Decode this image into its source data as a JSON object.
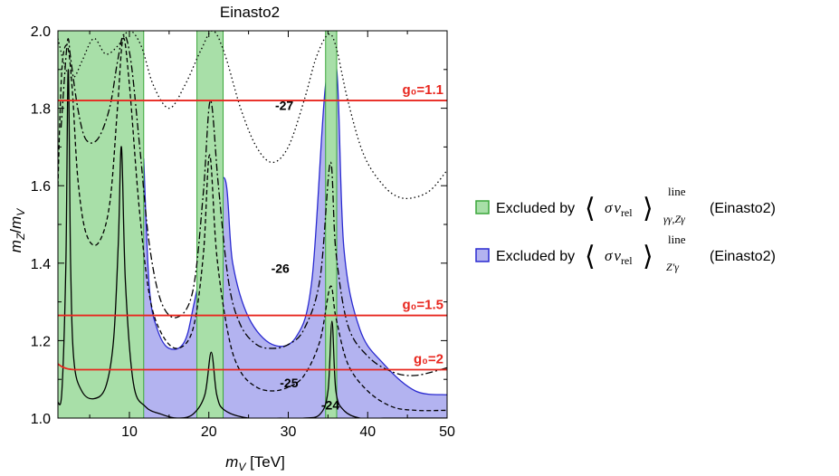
{
  "chart_data": {
    "type": "line",
    "title": "Einasto2",
    "xlabel_var": "m",
    "xlabel_sub": "V",
    "xlabel_unit": " [TeV]",
    "ylabel_var_num": "m",
    "ylabel_sub_num": "Z",
    "ylabel_var_den": "m",
    "ylabel_sub_den": "V",
    "xlim": [
      1,
      50
    ],
    "ylim": [
      1.0,
      2.0
    ],
    "x_ticks": [
      10,
      20,
      30,
      40,
      50
    ],
    "x_tick_labels": [
      "10",
      "20",
      "30",
      "40",
      "50"
    ],
    "y_ticks": [
      1.0,
      1.2,
      1.4,
      1.6,
      1.8,
      2.0
    ],
    "y_tick_labels": [
      "1.0",
      "1.2",
      "1.4",
      "1.6",
      "1.8",
      "2.0"
    ],
    "colors": {
      "green_fill": "#a8dfa8",
      "green_edge": "#3aa63a",
      "blue_fill": "#b3b3f0",
      "blue_edge": "#2a2ad0",
      "red": "#e8271f",
      "curve": "#000000"
    },
    "excluded_gamma_bands": [
      [
        1,
        11.8
      ],
      [
        18.5,
        21.8
      ],
      [
        34.7,
        36.1
      ]
    ],
    "blue_boundary": {
      "x": [
        11.8,
        12.5,
        13.5,
        15,
        17,
        18.5,
        21.8,
        23,
        25,
        28,
        31,
        33,
        34.7,
        36.1,
        37,
        39,
        42,
        46,
        50
      ],
      "y": [
        1.67,
        1.34,
        1.23,
        1.18,
        1.2,
        1.33,
        1.62,
        1.4,
        1.26,
        1.19,
        1.21,
        1.36,
        1.86,
        1.9,
        1.44,
        1.23,
        1.14,
        1.07,
        1.06
      ]
    },
    "g0_lines": [
      {
        "label": "g₀=1.1",
        "y": 1.82
      },
      {
        "label": "g₀=1.5",
        "y": 1.265
      },
      {
        "label": "g₀=2",
        "y": 1.125,
        "start_y": 1.14
      }
    ],
    "contours": [
      {
        "name": "-24",
        "style": "solid",
        "x": [
          1,
          1.5,
          2,
          2.3,
          2.6,
          3,
          4,
          5.5,
          7,
          8,
          8.6,
          9,
          9.5,
          10.5,
          12,
          14,
          16,
          18,
          19.5,
          20.3,
          21,
          22,
          25,
          29,
          32,
          34,
          35,
          35.5,
          36,
          37,
          39,
          42,
          45,
          48,
          50
        ],
        "y": [
          1.04,
          1.07,
          1.4,
          1.9,
          1.4,
          1.15,
          1.07,
          1.05,
          1.08,
          1.2,
          1.45,
          1.7,
          1.35,
          1.09,
          1.03,
          1.01,
          1.0,
          1.01,
          1.06,
          1.17,
          1.06,
          1.02,
          1.0,
          1.0,
          1.0,
          1.01,
          1.07,
          1.25,
          1.07,
          1.02,
          1.0,
          1.0,
          1.0,
          1.0,
          1.0
        ]
      },
      {
        "name": "-25",
        "style": "dashed",
        "x": [
          1,
          1.5,
          2.2,
          2.8,
          3.5,
          4.5,
          6,
          7.5,
          8.5,
          9.2,
          10,
          11.2,
          12.5,
          14,
          16,
          18,
          19.3,
          20.1,
          21,
          22.5,
          24,
          26,
          28,
          30,
          32,
          34,
          35.3,
          36,
          37.5,
          40,
          43,
          46,
          50
        ],
        "y": [
          1.6,
          1.9,
          1.96,
          1.85,
          1.62,
          1.48,
          1.45,
          1.55,
          1.8,
          1.98,
          1.86,
          1.55,
          1.32,
          1.22,
          1.18,
          1.23,
          1.42,
          1.68,
          1.42,
          1.21,
          1.12,
          1.08,
          1.07,
          1.08,
          1.11,
          1.2,
          1.34,
          1.26,
          1.14,
          1.07,
          1.03,
          1.02,
          1.02
        ]
      },
      {
        "name": "-26",
        "style": "dashdot",
        "x": [
          1.4,
          2,
          2.3,
          2.6,
          3.5,
          4.5,
          6,
          7.5,
          8.5,
          9.3,
          10.2,
          11.3,
          12.5,
          14,
          16,
          18,
          19.3,
          20.2,
          21.2,
          22.5,
          24,
          26,
          28,
          30,
          32,
          34,
          35.3,
          36,
          37.5,
          40,
          43,
          46,
          50
        ],
        "y": [
          1.75,
          1.93,
          1.98,
          1.93,
          1.8,
          1.72,
          1.72,
          1.8,
          1.92,
          1.99,
          1.92,
          1.7,
          1.45,
          1.3,
          1.26,
          1.33,
          1.58,
          1.82,
          1.6,
          1.35,
          1.24,
          1.19,
          1.18,
          1.19,
          1.23,
          1.36,
          1.66,
          1.43,
          1.24,
          1.16,
          1.12,
          1.11,
          1.13
        ]
      },
      {
        "name": "-27",
        "style": "dotted",
        "x": [
          1,
          2,
          3,
          4,
          5.5,
          7,
          8.5,
          10,
          11.5,
          13,
          15,
          17,
          19,
          20.5,
          22,
          24,
          26,
          28,
          30,
          32,
          33.5,
          35,
          36,
          37.5,
          39.5,
          42,
          44,
          46,
          48,
          50
        ],
        "y": [
          1.98,
          1.9,
          1.88,
          1.92,
          1.98,
          1.94,
          1.96,
          2.0,
          1.96,
          1.86,
          1.8,
          1.86,
          1.95,
          2.0,
          1.94,
          1.8,
          1.7,
          1.66,
          1.7,
          1.82,
          1.93,
          1.99,
          1.96,
          1.82,
          1.68,
          1.6,
          1.57,
          1.57,
          1.59,
          1.64
        ]
      }
    ],
    "contour_labels": [
      {
        "text": "-27",
        "x": 13.0,
        "y": 1.795
      },
      {
        "text": "-26",
        "x": 12.5,
        "y": 1.375
      },
      {
        "text": "-25",
        "x": 13.6,
        "y": 1.08
      },
      {
        "text": "-24",
        "x": 18.8,
        "y": 1.022
      }
    ],
    "legend": [
      {
        "swatch": "green",
        "prefix": "Excluded by ",
        "sigma": "σ",
        "v": "v",
        "rel": "rel",
        "sup": "line",
        "sub": "γγ,Zγ",
        "suffix": "(Einasto2)"
      },
      {
        "swatch": "blue",
        "prefix": "Excluded by ",
        "sigma": "σ",
        "v": "v",
        "rel": "rel",
        "sup": "line",
        "sub": "Z′γ",
        "suffix": "(Einasto2)"
      }
    ]
  }
}
